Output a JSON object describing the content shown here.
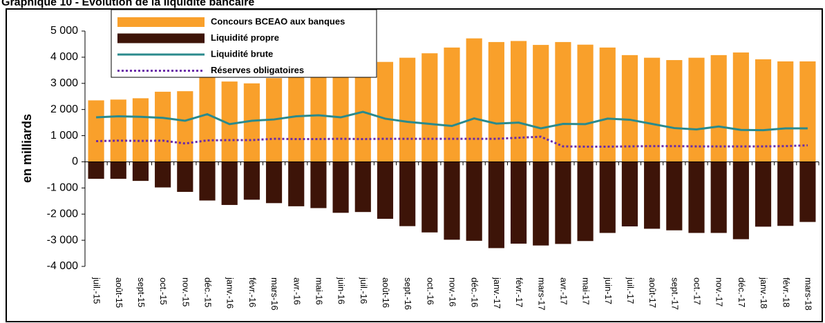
{
  "chart_data": {
    "type": "bar",
    "title": "Graphique 10 - Evolution de la liquidité bancaire",
    "y_label": "en milliards",
    "categories": [
      "juil.-15",
      "août-15",
      "sept-15",
      "oct.-15",
      "nov.-15",
      "déc.-15",
      "janv.-16",
      "févr.-16",
      "mars-16",
      "avr.-16",
      "mai-16",
      "juin-16",
      "juil.-16",
      "août-16",
      "sept.-16",
      "oct.-16",
      "nov.-16",
      "déc.-16",
      "janv.-17",
      "févr.-17",
      "mars-17",
      "avr.-17",
      "mai-17",
      "juin-17",
      "juil.-17",
      "août-17",
      "sept.-17",
      "oct.-17",
      "nov.-17",
      "déc.-17",
      "janv.-18",
      "févr.-18",
      "mars-18"
    ],
    "series": [
      {
        "name": "Concours BCEAO aux banques",
        "type": "bar",
        "color": "#f9a02b",
        "values": [
          2350,
          2380,
          2430,
          2680,
          2700,
          3300,
          3070,
          3000,
          3200,
          3350,
          3560,
          3650,
          3830,
          3820,
          3980,
          4150,
          4370,
          4720,
          4580,
          4620,
          4470,
          4580,
          4480,
          4370,
          4080,
          3980,
          3890,
          3980,
          4080,
          4180,
          3920,
          3840,
          3840
        ]
      },
      {
        "name": "Liquidité propre",
        "type": "bar",
        "color": "#3d1408",
        "values": [
          -650,
          -650,
          -730,
          -980,
          -1150,
          -1480,
          -1650,
          -1450,
          -1580,
          -1700,
          -1770,
          -1950,
          -1920,
          -2180,
          -2460,
          -2700,
          -2980,
          -3020,
          -3300,
          -3130,
          -3200,
          -3140,
          -3030,
          -2720,
          -2470,
          -2560,
          -2620,
          -2720,
          -2720,
          -2960,
          -2480,
          -2450,
          -2300
        ]
      },
      {
        "name": "Liquidité brute",
        "type": "line",
        "color": "#2a8a8c",
        "line_style": "solid",
        "values": [
          1700,
          1740,
          1720,
          1680,
          1570,
          1820,
          1440,
          1570,
          1620,
          1740,
          1780,
          1700,
          1910,
          1650,
          1530,
          1450,
          1370,
          1660,
          1460,
          1500,
          1280,
          1450,
          1440,
          1650,
          1610,
          1450,
          1290,
          1240,
          1350,
          1220,
          1210,
          1280,
          1280
        ]
      },
      {
        "name": "Réserves obligatoires",
        "type": "line",
        "color": "#6a2aa8",
        "line_style": "dotted",
        "values": [
          790,
          810,
          800,
          810,
          700,
          820,
          830,
          830,
          880,
          870,
          870,
          880,
          870,
          880,
          880,
          880,
          880,
          880,
          880,
          920,
          960,
          590,
          580,
          580,
          590,
          600,
          600,
          590,
          590,
          590,
          590,
          600,
          630
        ]
      }
    ],
    "ylim": [
      -4000,
      5000
    ],
    "yticks": [
      {
        "value": 5000,
        "label": "5 000"
      },
      {
        "value": 4000,
        "label": "4 000"
      },
      {
        "value": 3000,
        "label": "3 000"
      },
      {
        "value": 2000,
        "label": "2 000"
      },
      {
        "value": 1000,
        "label": "1 000"
      },
      0,
      {
        "value": -1000,
        "label": "-1 000"
      },
      {
        "value": -2000,
        "label": "-2 000"
      },
      {
        "value": -3000,
        "label": "-3 000"
      },
      {
        "value": -4000,
        "label": "-4 000"
      }
    ],
    "grid": false,
    "legend": "top-left"
  }
}
